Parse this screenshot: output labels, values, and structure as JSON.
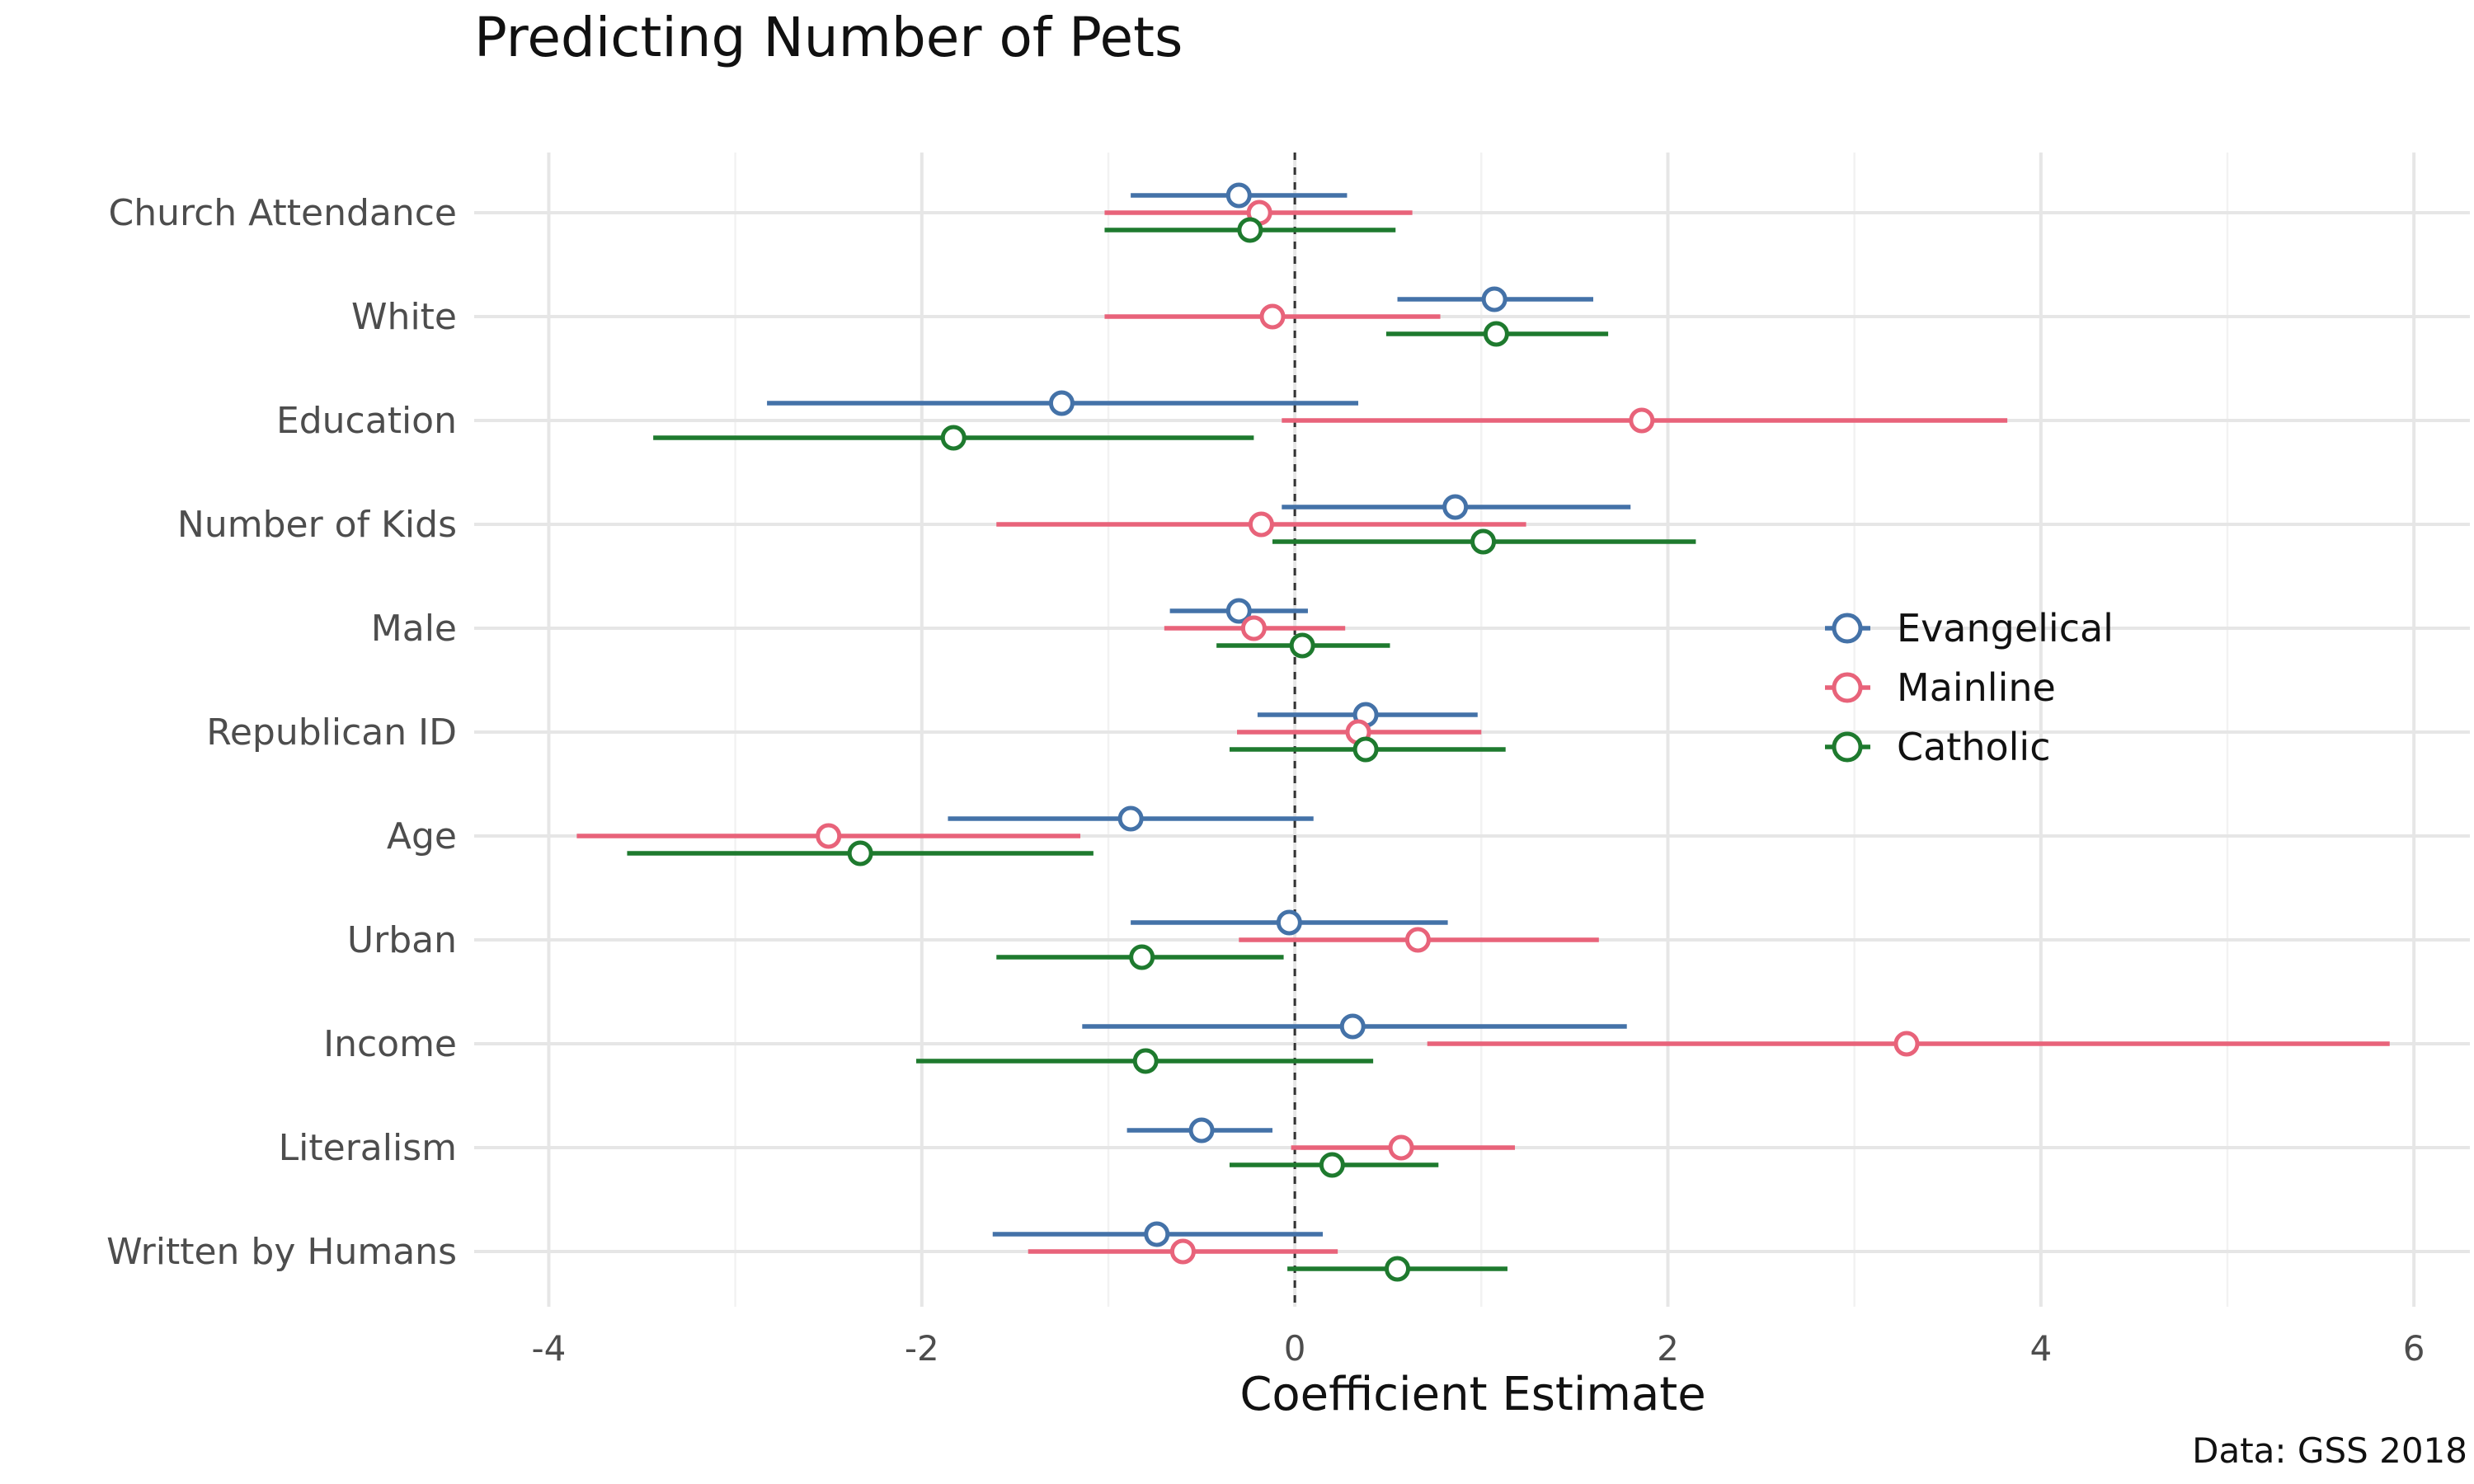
{
  "chart_data": {
    "type": "scatter",
    "title": "Predicting Number of Pets",
    "xlabel": "Coefficient Estimate",
    "ylabel": "",
    "caption": "Data: GSS 2018",
    "xlim": [
      -4.4,
      6.3
    ],
    "xticks": [
      -4,
      -2,
      0,
      2,
      4,
      6
    ],
    "xtick_labels": [
      "-4",
      "-2",
      "0",
      "2",
      "4",
      "6"
    ],
    "reference_line": 0,
    "grid": true,
    "legend_position": "right",
    "categories": [
      "Church Attendance",
      "White",
      "Education",
      "Number of Kids",
      "Male",
      "Republican ID",
      "Age",
      "Urban",
      "Income",
      "Literalism",
      "Written by Humans"
    ],
    "series": [
      {
        "name": "Evangelical",
        "color": "#4472a8",
        "estimates": [
          -0.3,
          1.07,
          -1.25,
          0.86,
          -0.3,
          0.38,
          -0.88,
          -0.03,
          0.31,
          -0.5,
          -0.74
        ],
        "lower": [
          -0.88,
          0.55,
          -2.83,
          -0.07,
          -0.67,
          -0.2,
          -1.86,
          -0.88,
          -1.14,
          -0.9,
          -1.62
        ],
        "upper": [
          0.28,
          1.6,
          0.34,
          1.8,
          0.07,
          0.98,
          0.1,
          0.82,
          1.78,
          -0.12,
          0.15
        ]
      },
      {
        "name": "Mainline",
        "color": "#e8637a",
        "estimates": [
          -0.19,
          -0.12,
          1.86,
          -0.18,
          -0.22,
          0.34,
          -2.5,
          0.66,
          3.28,
          0.57,
          -0.6
        ],
        "lower": [
          -1.02,
          -1.02,
          -0.07,
          -1.6,
          -0.7,
          -0.31,
          -3.85,
          -0.3,
          0.71,
          -0.02,
          -1.43
        ],
        "upper": [
          0.63,
          0.78,
          3.82,
          1.24,
          0.27,
          1.0,
          -1.15,
          1.63,
          5.87,
          1.18,
          0.23
        ]
      },
      {
        "name": "Catholic",
        "color": "#1e7a2e",
        "estimates": [
          -0.24,
          1.08,
          -1.83,
          1.01,
          0.04,
          0.38,
          -2.33,
          -0.82,
          -0.8,
          0.2,
          0.55
        ],
        "lower": [
          -1.02,
          0.49,
          -3.44,
          -0.12,
          -0.42,
          -0.35,
          -3.58,
          -1.6,
          -2.03,
          -0.35,
          -0.04
        ],
        "upper": [
          0.54,
          1.68,
          -0.22,
          2.15,
          0.51,
          1.13,
          -1.08,
          -0.06,
          0.42,
          0.77,
          1.14
        ]
      }
    ]
  }
}
